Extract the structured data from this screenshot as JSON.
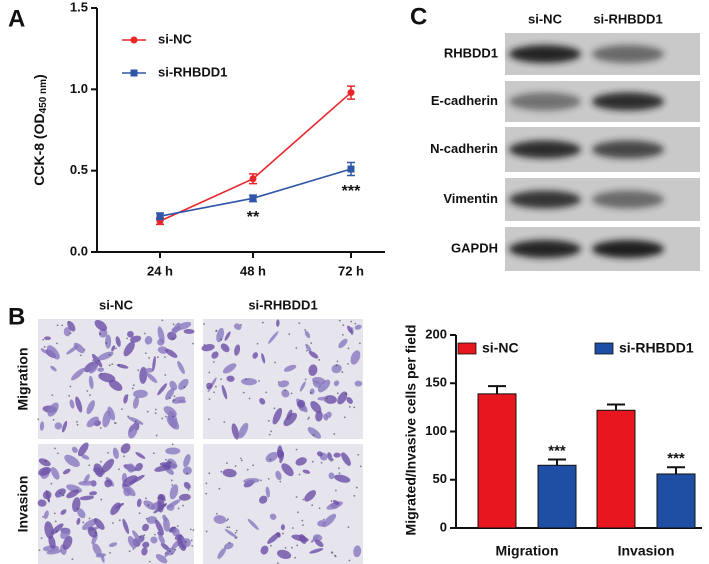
{
  "chart_data": [
    {
      "type": "line",
      "panel": "A",
      "y_label": [
        "CCK-8 (OD",
        "450 nm",
        ")"
      ],
      "categories": [
        "24 h",
        "48 h",
        "72 h"
      ],
      "series": [
        {
          "name": "si-NC",
          "color": "#e8262a",
          "values": [
            0.19,
            0.45,
            0.98
          ],
          "errors": [
            0.02,
            0.03,
            0.04
          ]
        },
        {
          "name": "si-RHBDD1",
          "color": "#2f56a8",
          "values": [
            0.22,
            0.33,
            0.51
          ],
          "errors": [
            0.02,
            0.02,
            0.04
          ]
        }
      ],
      "ylim": [
        0,
        1.5
      ],
      "yticks": [
        {
          "value": 0,
          "label": "0.0"
        },
        {
          "value": 0.5,
          "label": "0.5"
        },
        {
          "value": 1,
          "label": "1.0"
        },
        {
          "value": 1.5,
          "label": "1.5"
        }
      ],
      "annotations": [
        {
          "text": "**",
          "category": 1
        },
        {
          "text": "***",
          "category": 2
        }
      ]
    },
    {
      "type": "bar",
      "y_label": "Migrated/Invasive cells per field",
      "categories": [
        "Migration",
        "Invasion"
      ],
      "series": [
        {
          "name": "si-NC",
          "color": "#e8171f",
          "values": [
            139,
            122
          ],
          "errors": [
            8,
            6
          ]
        },
        {
          "name": "si-RHBDD1",
          "color": "#1f4fa5",
          "values": [
            65,
            56
          ],
          "errors": [
            6,
            7
          ]
        }
      ],
      "ylim": [
        0,
        200
      ],
      "yticks": [
        0,
        50,
        100,
        150,
        200
      ],
      "annotations": [
        {
          "text": "***",
          "category": 0
        },
        {
          "text": "***",
          "category": 1
        }
      ]
    }
  ],
  "blot": {
    "panel": "C",
    "columns": [
      "si-NC",
      "si-RHBDD1"
    ],
    "rows": [
      "RHBDD1",
      "E-cadherin",
      "N-cadherin",
      "Vimentin",
      "GAPDH"
    ]
  },
  "micrographs": {
    "panel": "B",
    "columns": [
      "si-NC",
      "si-RHBDD1"
    ],
    "rows": [
      "Migration",
      "Invasion"
    ]
  }
}
